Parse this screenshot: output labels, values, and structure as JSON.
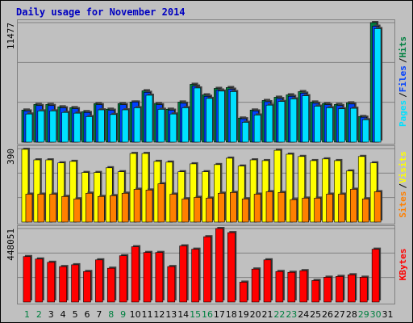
{
  "chart_data": {
    "type": "bar",
    "title": "Daily usage for November 2014",
    "categories": [
      "1",
      "2",
      "3",
      "4",
      "5",
      "6",
      "7",
      "8",
      "9",
      "10",
      "11",
      "12",
      "13",
      "14",
      "15",
      "16",
      "17",
      "18",
      "19",
      "20",
      "21",
      "22",
      "23",
      "24",
      "25",
      "26",
      "27",
      "28",
      "29",
      "30",
      "31"
    ],
    "category_colors": [
      "#008040",
      "#008040",
      "#000000",
      "#000000",
      "#000000",
      "#000000",
      "#000000",
      "#008040",
      "#008040",
      "#000000",
      "#000000",
      "#000000",
      "#000000",
      "#000000",
      "#008040",
      "#008040",
      "#000000",
      "#000000",
      "#000000",
      "#000000",
      "#000000",
      "#008040",
      "#008040",
      "#000000",
      "#000000",
      "#000000",
      "#000000",
      "#000000",
      "#008040",
      "#008040",
      "#000000"
    ],
    "legend_separator": "/",
    "panels": [
      {
        "ylim": [
          0,
          11477
        ],
        "yticks": [
          11477
        ],
        "series": [
          {
            "name": "Hits",
            "color": "#008040",
            "values": [
              3080,
              3620,
              3620,
              3390,
              3310,
              2930,
              3700,
              3160,
              3700,
              3850,
              4930,
              3700,
              3160,
              3850,
              5550,
              4540,
              5160,
              5240,
              2310,
              3080,
              4000,
              4310,
              4540,
              4850,
              3850,
              3700,
              3620,
              3770,
              2460,
              11477,
              null
            ]
          },
          {
            "name": "Files",
            "color": "#0040ff",
            "values": [
              2990,
              3510,
              3510,
              3290,
              3210,
              2840,
              3590,
              3060,
              3590,
              3850,
              4780,
              3590,
              3060,
              3730,
              5380,
              4400,
              5000,
              5080,
              2240,
              2990,
              3880,
              4180,
              4400,
              4700,
              3730,
              3590,
              3510,
              3660,
              2390,
              11130,
              null
            ]
          },
          {
            "name": "Pages",
            "color": "#00e0ff",
            "values": [
              2700,
              3000,
              3000,
              2850,
              2780,
              2450,
              3100,
              2650,
              3100,
              3300,
              4500,
              3150,
              2700,
              3300,
              5200,
              4200,
              4900,
              4850,
              1900,
              2600,
              3550,
              3900,
              4150,
              4450,
              3450,
              3300,
              3200,
              3250,
              2150,
              10900,
              null
            ]
          }
        ]
      },
      {
        "ylim": [
          0,
          390
        ],
        "yticks": [
          390
        ],
        "series": [
          {
            "name": "Visits",
            "color": "#ffff00",
            "values": [
              386,
              330,
              330,
              314,
              322,
              263,
              263,
              288,
              267,
              364,
              364,
              322,
              318,
              267,
              309,
              267,
              305,
              339,
              297,
              330,
              326,
              381,
              360,
              348,
              326,
              335,
              326,
              271,
              348,
              314,
              null
            ]
          },
          {
            "name": "Sites",
            "color": "#ff8000",
            "values": [
              148,
              148,
              148,
              136,
              123,
              153,
              136,
              140,
              153,
              174,
              170,
              203,
              148,
              123,
              131,
              127,
              153,
              157,
              123,
              148,
              161,
              157,
              119,
              127,
              127,
              148,
              148,
              174,
              123,
              161,
              null
            ]
          }
        ]
      },
      {
        "ylim": [
          0,
          448051
        ],
        "yticks": [
          448051
        ],
        "series": [
          {
            "name": "KBytes",
            "color": "#ff0000",
            "values": [
              277000,
              262000,
              242000,
              216000,
              227000,
              186000,
              257000,
              206000,
              282000,
              337000,
              302000,
              302000,
              216000,
              342000,
              322000,
              398000,
              448051,
              423000,
              121000,
              201000,
              257000,
              186000,
              181000,
              191000,
              131000,
              151000,
              156000,
              166000,
              151000,
              322000,
              null
            ]
          }
        ]
      }
    ]
  }
}
